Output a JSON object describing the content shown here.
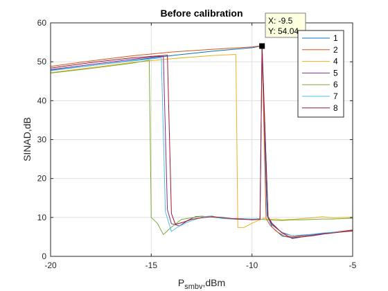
{
  "chart_data": {
    "type": "line",
    "title": "Before calibration",
    "xlabel_main": "P",
    "xlabel_sub": "smbv",
    "xlabel_tail": ",dBm",
    "ylabel": "SINAD,dB",
    "xlim": [
      -20,
      -5
    ],
    "ylim": [
      0,
      60
    ],
    "xticks": [
      -20,
      -15,
      -10,
      -5
    ],
    "yticks": [
      0,
      10,
      20,
      30,
      40,
      50,
      60
    ],
    "grid": true,
    "legend_position": "top-right",
    "series": [
      {
        "name": "1",
        "color": "#0072BD",
        "x": [
          -20,
          -18,
          -16,
          -14,
          -12,
          -10,
          -9.7,
          -9.5,
          -9.25,
          -9,
          -8.5,
          -8,
          -7.5,
          -7,
          -6.5,
          -6,
          -5.5,
          -5
        ],
        "y": [
          47.8,
          49,
          50.3,
          51.6,
          52.7,
          53.6,
          53.9,
          54.04,
          10.5,
          7.5,
          5.2,
          4.8,
          5.0,
          5.4,
          5.8,
          6.1,
          6.4,
          6.7
        ]
      },
      {
        "name": "2",
        "color": "#D95319",
        "x": [
          -20,
          -18,
          -16,
          -14,
          -12,
          -10,
          -9.7,
          -9.5,
          -9.3,
          -9.1,
          -8.8,
          -8.4,
          -8,
          -7.6,
          -7,
          -6.5,
          -6,
          -5.5,
          -5
        ],
        "y": [
          48.8,
          50.2,
          51.5,
          52.5,
          53.2,
          53.8,
          54,
          54.04,
          9.8,
          8,
          6.5,
          5.2,
          5.0,
          5.2,
          5.6,
          5.9,
          6.2,
          6.5,
          6.8
        ]
      },
      {
        "name": "4",
        "color": "#EDB120",
        "x": [
          -20,
          -18,
          -16,
          -14,
          -12,
          -10.8,
          -10.7,
          -10.4,
          -10,
          -9.7,
          -9.4,
          -9.1,
          -8.8,
          -8.5,
          -8,
          -7.5,
          -7,
          -6.5,
          -6,
          -5.5,
          -5
        ],
        "y": [
          47.2,
          48.5,
          49.8,
          50.8,
          51.6,
          51.9,
          7.4,
          7.4,
          8.5,
          9.2,
          9.8,
          9.5,
          9.6,
          9.4,
          9.5,
          9.7,
          9.9,
          10.2,
          9.9,
          10,
          10
        ]
      },
      {
        "name": "5",
        "color": "#7E2F8E",
        "x": [
          -20,
          -18,
          -16,
          -14.8,
          -14.4,
          -14.2,
          -14,
          -13.6,
          -13.2,
          -12.8,
          -12.5,
          -12,
          -11.5,
          -11,
          -10.5,
          -10,
          -9.6,
          -9.5,
          -9.2,
          -9,
          -8.5,
          -8,
          -7.5,
          -7,
          -6.5,
          -6,
          -5.5,
          -5
        ],
        "y": [
          48,
          49.3,
          50.6,
          51.3,
          51.4,
          12,
          8.4,
          7.8,
          9.2,
          10.2,
          10.3,
          10.1,
          9.8,
          9.6,
          9.5,
          9.5,
          9.6,
          54.04,
          10.2,
          8.5,
          6,
          5.3,
          5.4,
          5.6,
          5.9,
          6.1,
          6.3,
          6.5
        ]
      },
      {
        "name": "6",
        "color": "#77AC30",
        "x": [
          -20,
          -18,
          -16,
          -15.1,
          -15,
          -14.7,
          -14.4,
          -14,
          -13.5,
          -13,
          -12.5,
          -12,
          -11.5,
          -11,
          -10.5,
          -10,
          -9.5,
          -9,
          -8.5,
          -8,
          -7.5,
          -7,
          -6.5,
          -6,
          -5.5,
          -5
        ],
        "y": [
          47.1,
          48.3,
          49.6,
          50.4,
          10,
          8.5,
          5.6,
          7.5,
          9.5,
          9.9,
          10.3,
          10.1,
          9.8,
          9.7,
          9.6,
          9.6,
          9.5,
          9.3,
          9.2,
          9.4,
          9.4,
          9.5,
          9.6,
          9.6,
          9.7,
          9.8
        ]
      },
      {
        "name": "7",
        "color": "#4DBEEE",
        "x": [
          -20,
          -18,
          -16,
          -14.7,
          -14.5,
          -14.3,
          -14,
          -13.7,
          -13.2,
          -12.8,
          -12.4,
          -12,
          -11.5,
          -11,
          -10.5,
          -10,
          -9.6,
          -9.5,
          -9.2,
          -9,
          -8.5,
          -8,
          -7.5,
          -7,
          -6.5,
          -6,
          -5.5,
          -5
        ],
        "y": [
          47.7,
          49,
          50.2,
          50.9,
          51,
          11.5,
          6.4,
          7.5,
          8.8,
          9.5,
          10.2,
          10.4,
          9.7,
          9.6,
          9.7,
          9.6,
          9.7,
          54.04,
          9.8,
          8,
          6.2,
          5.3,
          5.5,
          5.7,
          6,
          6.2,
          6.4,
          6.6
        ]
      },
      {
        "name": "8",
        "color": "#A2142F",
        "x": [
          -20,
          -18,
          -16,
          -14.2,
          -14,
          -13.8,
          -13.4,
          -13,
          -12.5,
          -12,
          -11.5,
          -11,
          -10.5,
          -10,
          -9.6,
          -9.5,
          -9.2,
          -9,
          -8.5,
          -8,
          -7.5,
          -7,
          -6.5,
          -6,
          -5.5,
          -5
        ],
        "y": [
          48.4,
          49.8,
          51,
          51.7,
          11,
          8.2,
          8.8,
          9.5,
          9.9,
          10.2,
          10,
          9.7,
          9.6,
          9.4,
          9.5,
          54.04,
          10,
          8.2,
          6,
          4.6,
          5.0,
          5.3,
          5.7,
          6,
          6.3,
          6.6
        ]
      }
    ],
    "datatip": {
      "x": -9.5,
      "y": 54.04,
      "x_text": "X: -9.5",
      "y_text": "Y: 54.04"
    }
  }
}
